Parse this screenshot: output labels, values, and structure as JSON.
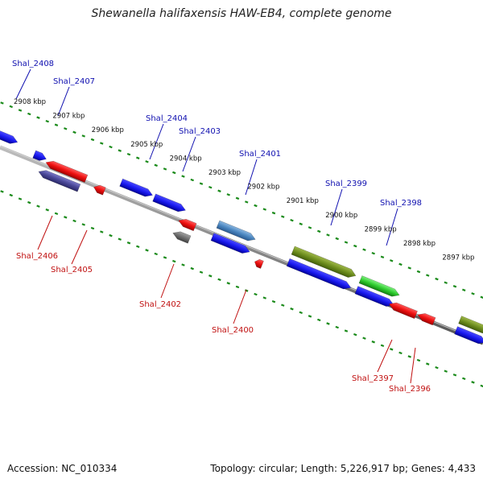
{
  "title": "Shewanella halifaxensis HAW-EB4, complete genome",
  "footer": {
    "accession": "Accession: NC_010334",
    "summary": "Topology: circular; Length: 5,226,917 bp; Genes: 4,433"
  },
  "colors": {
    "backbone": "#8c8c8c",
    "tick_line": "#1a8a1a",
    "label_forward": "#1010b0",
    "label_reverse": "#c01010"
  },
  "scale_labels": [
    {
      "text": "2908 kbp",
      "kbp": 2908
    },
    {
      "text": "2907 kbp",
      "kbp": 2907
    },
    {
      "text": "2906 kbp",
      "kbp": 2906
    },
    {
      "text": "2905 kbp",
      "kbp": 2905
    },
    {
      "text": "2904 kbp",
      "kbp": 2904
    },
    {
      "text": "2903 kbp",
      "kbp": 2903
    },
    {
      "text": "2902 kbp",
      "kbp": 2902
    },
    {
      "text": "2901 kbp",
      "kbp": 2901
    },
    {
      "text": "2900 kbp",
      "kbp": 2900
    },
    {
      "text": "2899 kbp",
      "kbp": 2899
    },
    {
      "text": "2898 kbp",
      "kbp": 2898
    },
    {
      "text": "2897 kbp",
      "kbp": 2897
    }
  ],
  "forward_labels": [
    {
      "text": "Shal_2408"
    },
    {
      "text": "Shal_2407"
    },
    {
      "text": "Shal_2404"
    },
    {
      "text": "Shal_2403"
    },
    {
      "text": "Shal_2401"
    },
    {
      "text": "Shal_2399"
    },
    {
      "text": "Shal_2398"
    }
  ],
  "reverse_labels": [
    {
      "text": "Shal_2406"
    },
    {
      "text": "Shal_2405"
    },
    {
      "text": "Shal_2402"
    },
    {
      "text": "Shal_2400"
    },
    {
      "text": "Shal_2397"
    },
    {
      "text": "Shal_2396"
    }
  ]
}
